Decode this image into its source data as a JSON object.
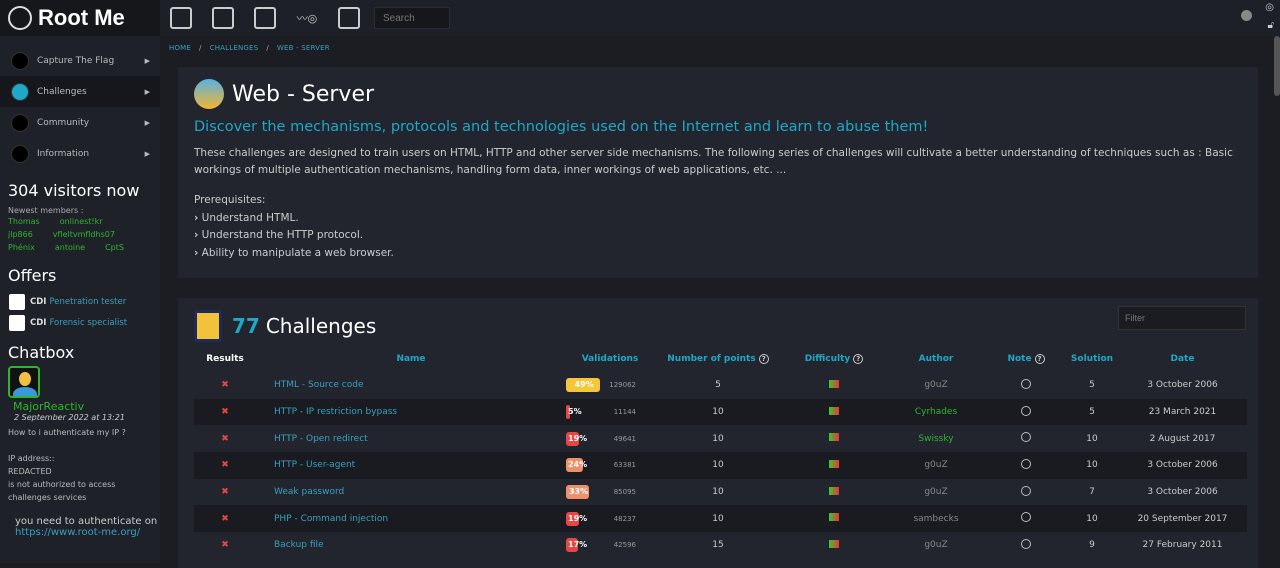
{
  "header": {
    "logo": "Root Me",
    "search_placeholder": "Search",
    "top_icons": [
      "ctf-icon",
      "challenges-icon",
      "documents-icon",
      "community-icon",
      "shop-icon"
    ]
  },
  "breadcrumb": [
    "HOME",
    "CHALLENGES",
    "WEB - SERVER"
  ],
  "sidebar": {
    "items": [
      {
        "label": "Capture The Flag"
      },
      {
        "label": "Challenges",
        "active": true
      },
      {
        "label": "Community"
      },
      {
        "label": "Information"
      }
    ],
    "visitors": "304 visitors now",
    "newest_label": "Newest members :",
    "members": [
      "Thomas",
      "onlinest!kr",
      "jlp866",
      "vfleltvmfldhs07",
      "Phénix",
      "antoine",
      "CptS"
    ],
    "offers_title": "Offers",
    "offers": [
      {
        "type": "CDI",
        "label": "Penetration tester"
      },
      {
        "type": "CDI",
        "label": "Forensic specialist"
      }
    ],
    "chatbox_title": "Chatbox",
    "chat": {
      "user": "MajorReactiv",
      "date": "2 September 2022 at 13:21",
      "lines": [
        "How to i authenticate my IP ?",
        "",
        "IP address::",
        "REDACTED",
        "is not authorized to access",
        "challenges services"
      ],
      "reply": "you need to authenticate on",
      "link": "https://www.root-me.org/"
    }
  },
  "intro": {
    "title": "Web - Server",
    "subtitle": "Discover the mechanisms, protocols and technologies used on the Internet and learn to abuse them!",
    "description": "These challenges are designed to train users on HTML, HTTP and other server side mechanisms. The following series of challenges will cultivate a better understanding of techniques such as : Basic workings of multiple authentication mechanisms, handling form data, inner workings of web applications, etc. ...",
    "prereq_title": "Prerequisites:",
    "prereqs": [
      "Understand HTML.",
      "Understand the HTTP protocol.",
      "Ability to manipulate a web browser."
    ]
  },
  "challenges": {
    "count": "77",
    "label": "Challenges",
    "filter_placeholder": "Filter",
    "columns": [
      "Results",
      "Name",
      "Validations",
      "Number of points",
      "Difficulty",
      "Author",
      "Note",
      "Solution",
      "Date"
    ],
    "colors": {
      "yellow": "#f5c638",
      "red": "#e84545",
      "orange": "#f0906a",
      "peach": "#f2a07a"
    },
    "rows": [
      {
        "result": "✖",
        "name": "HTML - Source code",
        "pct": "49%",
        "pct_value": 49,
        "color": "#f5c638",
        "validations": "129062",
        "points": "5",
        "author": "g0uZ",
        "author_color": "grey",
        "solution": "5",
        "date": "3 October 2006"
      },
      {
        "result": "✖",
        "name": "HTTP - IP restriction bypass",
        "pct": "5%",
        "pct_value": 5,
        "color": "#e84545",
        "validations": "11144",
        "points": "10",
        "author": "Cyrhades",
        "author_color": "green",
        "solution": "5",
        "date": "23 March 2021"
      },
      {
        "result": "✖",
        "name": "HTTP - Open redirect",
        "pct": "19%",
        "pct_value": 19,
        "color": "#e84545",
        "validations": "49641",
        "points": "10",
        "author": "Swissky",
        "author_color": "green",
        "solution": "10",
        "date": "2 August 2017"
      },
      {
        "result": "✖",
        "name": "HTTP - User-agent",
        "pct": "24%",
        "pct_value": 24,
        "color": "#f0906a",
        "validations": "63381",
        "points": "10",
        "author": "g0uZ",
        "author_color": "grey",
        "solution": "10",
        "date": "3 October 2006"
      },
      {
        "result": "✖",
        "name": "Weak password",
        "pct": "33%",
        "pct_value": 33,
        "color": "#f0906a",
        "validations": "85095",
        "points": "10",
        "author": "g0uZ",
        "author_color": "grey",
        "solution": "7",
        "date": "3 October 2006"
      },
      {
        "result": "✖",
        "name": "PHP - Command injection",
        "pct": "19%",
        "pct_value": 19,
        "color": "#e84545",
        "validations": "48237",
        "points": "10",
        "author": "sambecks",
        "author_color": "grey",
        "solution": "10",
        "date": "20 September 2017"
      },
      {
        "result": "✖",
        "name": "Backup file",
        "pct": "17%",
        "pct_value": 17,
        "color": "#e84545",
        "validations": "42596",
        "points": "15",
        "author": "g0uZ",
        "author_color": "grey",
        "solution": "9",
        "date": "27 February 2011"
      }
    ]
  }
}
